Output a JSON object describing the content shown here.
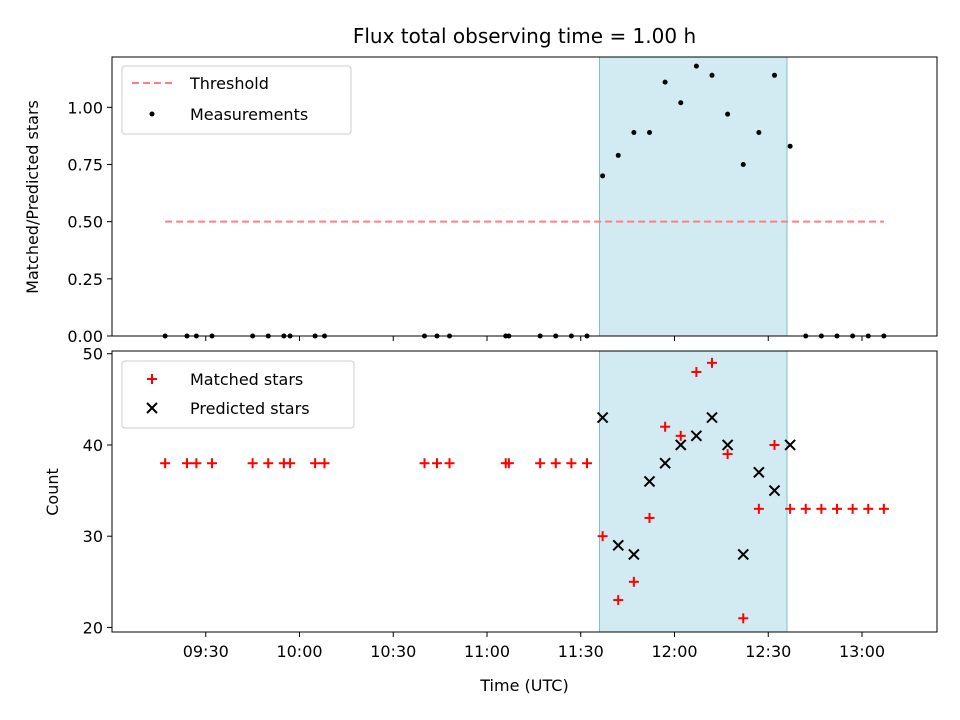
{
  "chart_data": [
    {
      "type": "scatter",
      "title": "Flux total observing time = 1.00 h",
      "xlabel": "",
      "ylabel": "Matched/Predicted stars",
      "ylim": [
        0,
        1.22
      ],
      "xlim": [
        "09:00",
        "13:24"
      ],
      "yticks": [
        "0.00",
        "0.25",
        "0.50",
        "0.75",
        "1.00"
      ],
      "ytick_values": [
        0,
        0.25,
        0.5,
        0.75,
        1.0
      ],
      "shaded_region": {
        "start": "11:36",
        "end": "12:36",
        "color": "#add8e6"
      },
      "legend": {
        "placement": "upper-left",
        "entries": [
          "Threshold",
          "Measurements"
        ]
      },
      "series": [
        {
          "name": "Threshold",
          "kind": "dashed-line",
          "color": "#ff7f7f",
          "x": [
            "09:17",
            "13:07"
          ],
          "y": [
            0.5,
            0.5
          ]
        },
        {
          "name": "Measurements",
          "kind": "dots",
          "color": "#000000",
          "x": [
            "09:17",
            "09:24",
            "09:27",
            "09:32",
            "09:45",
            "09:50",
            "09:55",
            "09:57",
            "10:05",
            "10:08",
            "10:40",
            "10:44",
            "10:48",
            "11:06",
            "11:07",
            "11:17",
            "11:22",
            "11:27",
            "11:32",
            "11:37",
            "11:42",
            "11:47",
            "11:52",
            "11:57",
            "12:02",
            "12:07",
            "12:12",
            "12:17",
            "12:22",
            "12:27",
            "12:32",
            "12:37",
            "12:42",
            "12:47",
            "12:52",
            "12:57",
            "13:02",
            "13:07"
          ],
          "y": [
            0,
            0,
            0,
            0,
            0,
            0,
            0,
            0,
            0,
            0,
            0,
            0,
            0,
            0,
            0,
            0,
            0,
            0,
            0,
            0.7,
            0.79,
            0.89,
            0.89,
            1.11,
            1.02,
            1.18,
            1.14,
            0.97,
            0.75,
            0.89,
            1.14,
            0.83,
            0,
            0,
            0,
            0,
            0,
            0
          ]
        }
      ]
    },
    {
      "type": "scatter",
      "title": "",
      "xlabel": "Time (UTC)",
      "ylabel": "Count",
      "ylim": [
        19.5,
        50.3
      ],
      "xlim": [
        "09:00",
        "13:24"
      ],
      "yticks": [
        "20",
        "30",
        "40",
        "50"
      ],
      "ytick_values": [
        20,
        30,
        40,
        50
      ],
      "xticks": [
        "09:30",
        "10:00",
        "10:30",
        "11:00",
        "11:30",
        "12:00",
        "12:30",
        "13:00"
      ],
      "shaded_region": {
        "start": "11:36",
        "end": "12:36",
        "color": "#add8e6"
      },
      "legend": {
        "placement": "upper-left",
        "entries": [
          "Matched stars",
          "Predicted stars"
        ]
      },
      "series": [
        {
          "name": "Matched stars",
          "marker": "plus",
          "color": "#ff0000",
          "x": [
            "09:17",
            "09:24",
            "09:27",
            "09:32",
            "09:45",
            "09:50",
            "09:55",
            "09:57",
            "10:05",
            "10:08",
            "10:40",
            "10:44",
            "10:48",
            "11:06",
            "11:07",
            "11:17",
            "11:22",
            "11:27",
            "11:32",
            "11:37",
            "11:42",
            "11:47",
            "11:52",
            "11:57",
            "12:02",
            "12:07",
            "12:12",
            "12:17",
            "12:22",
            "12:27",
            "12:32",
            "12:37",
            "12:42",
            "12:47",
            "12:52",
            "12:57",
            "13:02",
            "13:07"
          ],
          "y": [
            38,
            38,
            38,
            38,
            38,
            38,
            38,
            38,
            38,
            38,
            38,
            38,
            38,
            38,
            38,
            38,
            38,
            38,
            38,
            30,
            23,
            25,
            32,
            42,
            41,
            48,
            49,
            39,
            21,
            33,
            40,
            33,
            33,
            33,
            33,
            33,
            33,
            33
          ]
        },
        {
          "name": "Predicted stars",
          "marker": "x",
          "color": "#000000",
          "x": [
            "11:37",
            "11:42",
            "11:47",
            "11:52",
            "11:57",
            "12:02",
            "12:07",
            "12:12",
            "12:17",
            "12:22",
            "12:27",
            "12:32",
            "12:37"
          ],
          "y": [
            43,
            29,
            28,
            36,
            38,
            40,
            41,
            43,
            40,
            28,
            37,
            35,
            40
          ]
        }
      ]
    }
  ]
}
